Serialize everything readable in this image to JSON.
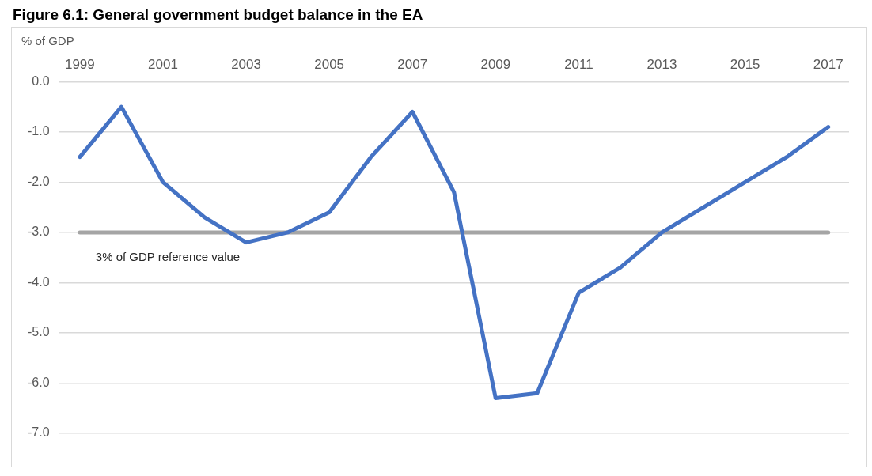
{
  "chart_data": {
    "type": "line",
    "title": "Figure 6.1: General government budget balance in the EA",
    "ylabel": "% of GDP",
    "categories": [
      "1999",
      null,
      "2001",
      null,
      "2003",
      null,
      "2005",
      null,
      "2007",
      null,
      "2009",
      null,
      "2011",
      null,
      "2013",
      null,
      "2015",
      null,
      "2017"
    ],
    "series": [
      {
        "color": "#4472c4",
        "values": [
          -1.5,
          -0.5,
          -2.0,
          -2.7,
          -3.2,
          -3.0,
          -2.6,
          -1.5,
          -0.6,
          -2.2,
          -6.3,
          -6.2,
          -4.2,
          -3.7,
          -3.0,
          -2.5,
          -2.0,
          -1.5,
          -0.9
        ]
      }
    ],
    "ylim": [
      -7,
      0
    ],
    "yticks": [
      {
        "value": 0,
        "label": "0.0"
      },
      {
        "value": -1,
        "label": "-1.0"
      },
      {
        "value": -2,
        "label": "-2.0"
      },
      {
        "value": -3,
        "label": "-3.0"
      },
      {
        "value": -4,
        "label": "-4.0"
      },
      {
        "value": -5,
        "label": "-5.0"
      },
      {
        "value": -6,
        "label": "-6.0"
      },
      {
        "value": -7,
        "label": "-7.0"
      }
    ],
    "ref_lines": [
      {
        "axis": "y",
        "value": -3,
        "label": "3% of GDP reference value",
        "color": "#a5a5a5"
      }
    ],
    "grid": "y",
    "legend": false,
    "marker": "none",
    "line_style": "solid"
  }
}
